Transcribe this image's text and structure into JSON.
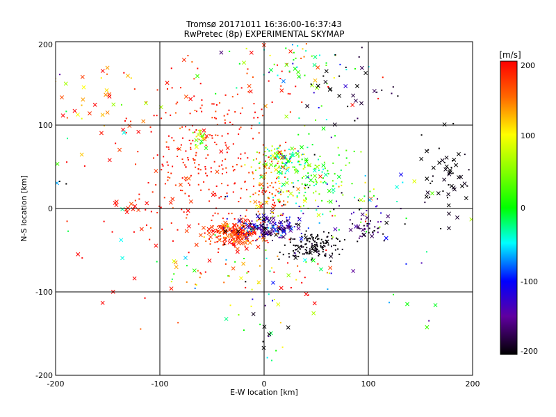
{
  "chart_data": {
    "type": "scatter",
    "title": "Tromsø 20171011 16:36:00-16:37:43",
    "subtitle": "RwPretec (8p) EXPERIMENTAL SKYMAP",
    "xlabel": "E-W location [km]",
    "ylabel": "N-S location [km]",
    "xlim": [
      -200,
      200
    ],
    "ylim": [
      -200,
      200
    ],
    "xticks": [
      "-200",
      "-100",
      "0",
      "100",
      "200"
    ],
    "yticks": [
      "-200",
      "-100",
      "0",
      "100",
      "200"
    ],
    "grid": true,
    "colorbar": {
      "label": "[m/s]",
      "range": [
        -200,
        200
      ],
      "ticks": [
        "200",
        "100",
        "0",
        "-100",
        "-200"
      ]
    },
    "marker_kinds": [
      "cross",
      "dot"
    ],
    "clusters": [
      {
        "cx": -28,
        "cy": -30,
        "sx": 14,
        "sy": 8,
        "n": 200,
        "v": 175,
        "vs": 25,
        "xfrac": 0.45
      },
      {
        "cx": 5,
        "cy": -22,
        "sx": 18,
        "sy": 7,
        "n": 170,
        "v": -140,
        "vs": 50,
        "xfrac": 0.4
      },
      {
        "cx": 45,
        "cy": -45,
        "sx": 14,
        "sy": 8,
        "n": 150,
        "v": -200,
        "vs": 8,
        "xfrac": 0.1
      },
      {
        "cx": 100,
        "cy": -25,
        "sx": 14,
        "sy": 10,
        "n": 45,
        "v": -170,
        "vs": 25,
        "xfrac": 0.25
      },
      {
        "cx": 40,
        "cy": 40,
        "sx": 22,
        "sy": 20,
        "n": 150,
        "v": 20,
        "vs": 40,
        "xfrac": 0.2
      },
      {
        "cx": 15,
        "cy": 60,
        "sx": 10,
        "sy": 8,
        "n": 80,
        "v": 40,
        "vs": 80,
        "xfrac": 0.4
      },
      {
        "cx": 5,
        "cy": 20,
        "sx": 10,
        "sy": 25,
        "n": 110,
        "v": 150,
        "vs": 40,
        "xfrac": 0.2
      },
      {
        "cx": -60,
        "cy": 45,
        "sx": 30,
        "sy": 45,
        "n": 220,
        "v": 190,
        "vs": 15,
        "xfrac": 0.08
      },
      {
        "cx": -30,
        "cy": 130,
        "sx": 50,
        "sy": 40,
        "n": 80,
        "v": 185,
        "vs": 25,
        "xfrac": 0.2
      },
      {
        "cx": 30,
        "cy": 160,
        "sx": 30,
        "sy": 25,
        "n": 70,
        "v": 10,
        "vs": 80,
        "xfrac": 0.25
      },
      {
        "cx": 80,
        "cy": 140,
        "sx": 20,
        "sy": 25,
        "n": 30,
        "v": -190,
        "vs": 15,
        "xfrac": 0.5
      },
      {
        "cx": 175,
        "cy": 35,
        "sx": 15,
        "sy": 25,
        "n": 60,
        "v": -200,
        "vs": 8,
        "xfrac": 0.75
      },
      {
        "cx": -150,
        "cy": 130,
        "sx": 30,
        "sy": 35,
        "n": 40,
        "v": 150,
        "vs": 80,
        "xfrac": 0.75
      },
      {
        "cx": -130,
        "cy": 5,
        "sx": 8,
        "sy": 6,
        "n": 12,
        "v": 190,
        "vs": 15,
        "xfrac": 0.8
      },
      {
        "cx": -60,
        "cy": 85,
        "sx": 5,
        "sy": 6,
        "n": 25,
        "v": 90,
        "vs": 70,
        "xfrac": 0.4
      },
      {
        "cx": 0,
        "cy": -150,
        "sx": 12,
        "sy": 30,
        "n": 30,
        "v": -60,
        "vs": 100,
        "xfrac": 0.3
      },
      {
        "cx": 0,
        "cy": -80,
        "sx": 50,
        "sy": 18,
        "n": 60,
        "v": 60,
        "vs": 140,
        "xfrac": 0.3
      },
      {
        "cx": 60,
        "cy": 10,
        "sx": 40,
        "sy": 20,
        "n": 70,
        "v": -40,
        "vs": 140,
        "xfrac": 0.1
      },
      {
        "cx": -100,
        "cy": -40,
        "sx": 45,
        "sy": 50,
        "n": 40,
        "v": 120,
        "vs": 100,
        "xfrac": 0.4
      },
      {
        "cx": -190,
        "cy": 100,
        "sx": 8,
        "sy": 60,
        "n": 18,
        "v": 0,
        "vs": 160,
        "xfrac": 0.5
      },
      {
        "cx": 150,
        "cy": -60,
        "sx": 40,
        "sy": 60,
        "n": 14,
        "v": -100,
        "vs": 120,
        "xfrac": 0.4
      }
    ]
  }
}
